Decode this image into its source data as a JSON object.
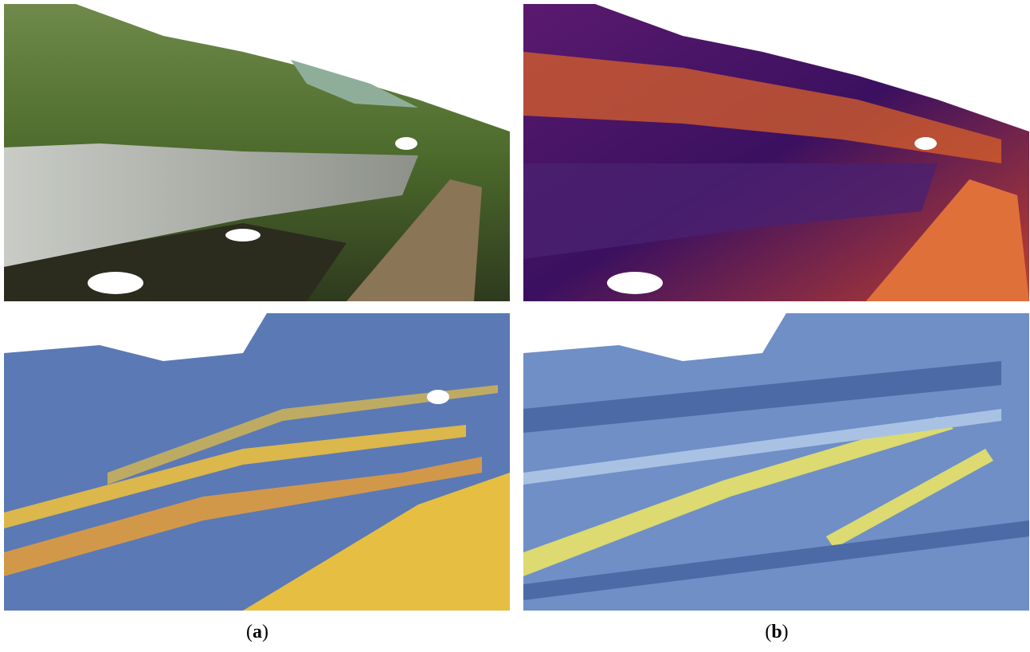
{
  "captions": [
    {
      "open": "(",
      "letter": "a",
      "close": ")"
    },
    {
      "open": "(",
      "letter": "b",
      "close": ")"
    }
  ]
}
